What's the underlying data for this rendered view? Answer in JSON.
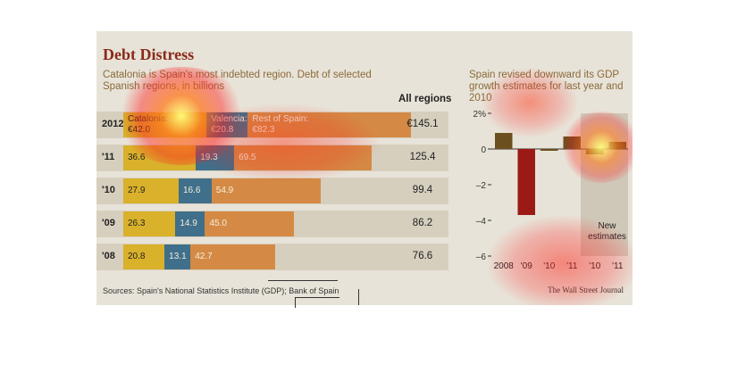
{
  "title": "Debt Distress",
  "left_subtitle": "Catalonia is Spain's most indebted region. Debt of selected Spanish regions, in billions",
  "all_regions_label": "All regions",
  "right_subtitle": "Spain revised downward its GDP growth estimates for last year and 2010",
  "sources": "Sources: Spain's National Statistics Institute (GDP); Bank of Spain",
  "credit": "The Wall Street Journal",
  "new_estimates_label": "New estimates",
  "colors": {
    "catalonia": "#d9b12a",
    "valencia": "#3f6f8a",
    "rest": "#d48a44",
    "gdp_bar": "#6b4f1f",
    "gdp_neg": "#9c1a16",
    "est_band": "#cfc8b8",
    "heat": "#ff1e1e"
  },
  "chart_data": [
    {
      "type": "bar",
      "orientation": "horizontal",
      "stacked": true,
      "title": "Debt of selected Spanish regions, in billions",
      "categories": [
        "2012",
        "'11",
        "'10",
        "'09",
        "'08"
      ],
      "series": [
        {
          "name": "Catalonia",
          "values": [
            42.0,
            36.6,
            27.9,
            26.3,
            20.8
          ],
          "labels": [
            "€42.0",
            "36.6",
            "27.9",
            "26.3",
            "20.8"
          ]
        },
        {
          "name": "Valencia",
          "values": [
            20.8,
            19.3,
            16.6,
            14.9,
            13.1
          ],
          "labels": [
            "€20.8",
            "19.3",
            "16.6",
            "14.9",
            "13.1"
          ]
        },
        {
          "name": "Rest of Spain",
          "values": [
            82.3,
            69.5,
            54.9,
            45.0,
            42.7
          ],
          "labels": [
            "€82.3",
            "69.5",
            "54.9",
            "45.0",
            "42.7"
          ]
        }
      ],
      "totals": [
        "€145.1",
        "125.4",
        "99.4",
        "86.2",
        "76.6"
      ],
      "first_row_series_names": [
        "Catalonia:",
        "Valencia:",
        "Rest of Spain:"
      ]
    },
    {
      "type": "bar",
      "title": "Spain revised downward its GDP growth estimates for last year and 2010",
      "categories": [
        "2008",
        "'09",
        "'10",
        "'11",
        "'10",
        "'11"
      ],
      "values": [
        0.9,
        -3.7,
        -0.1,
        0.7,
        -0.3,
        0.4
      ],
      "ylim": [
        -6,
        2
      ],
      "yticks": [
        -6,
        -4,
        -2,
        0,
        2
      ],
      "ytick_labels": [
        "–6",
        "–4",
        "–2",
        "0",
        "2%"
      ],
      "annotations": [
        "New estimates"
      ]
    }
  ]
}
